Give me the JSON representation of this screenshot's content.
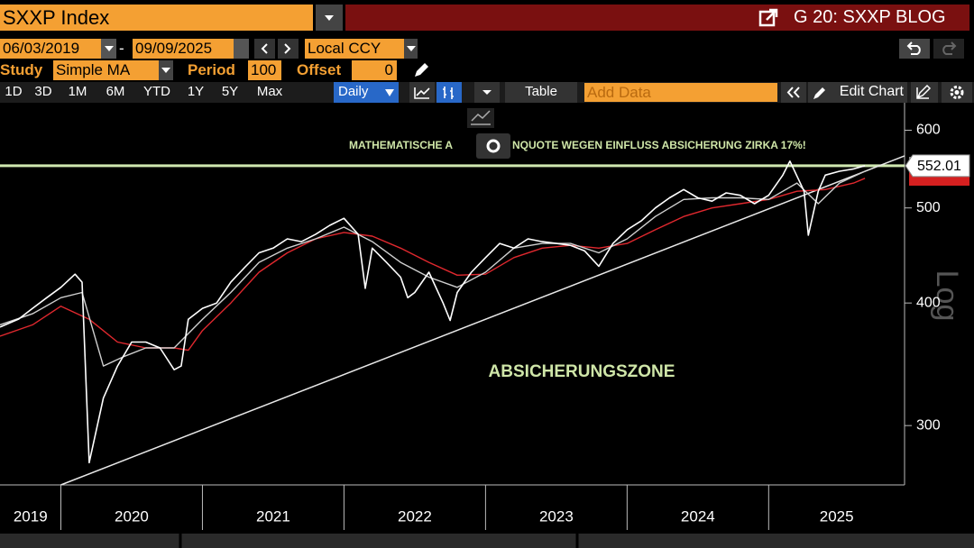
{
  "top": {
    "security": "SXXP Index",
    "window_title": "G 20: SXXP BLOG"
  },
  "controls": {
    "start_date": "06/03/2019",
    "date_separator": "-",
    "end_date": "09/09/2025",
    "currency": "Local CCY",
    "study_label": "Study",
    "study": "Simple MA",
    "period_label": "Period",
    "period": 100,
    "offset_label": "Offset",
    "offset": 0
  },
  "toolbar": {
    "ranges": [
      "1D",
      "3D",
      "1M",
      "6M",
      "YTD",
      "1Y",
      "5Y",
      "Max"
    ],
    "frequency": "Daily",
    "table": "Table",
    "add_data": "Add Data",
    "edit_chart": "Edit Chart"
  },
  "chart": {
    "type": "line",
    "log": true,
    "axis_label": "Log",
    "annotations": [
      "MATHEMATISCHE A",
      "NQUOTE WEGEN EINFLUSS ABSICHERUNG ZIRKA 17%!",
      "ABSICHERUNGSZONE"
    ],
    "xlim": [
      2019.57,
      2025.96
    ],
    "year_boundaries": [
      2020,
      2021,
      2022,
      2023,
      2024,
      2025
    ],
    "year_labels": [
      "2019",
      "2020",
      "2021",
      "2022",
      "2023",
      "2024",
      "2025"
    ],
    "ylim": [
      261,
      640
    ],
    "yticks": [
      300,
      400,
      500,
      600
    ],
    "last_price": 552.01,
    "level_color": "#cfe8b0",
    "trendline": {
      "x": [
        2020.0,
        2025.96
      ],
      "values": [
        261,
        565
      ],
      "color": "#e8e8e8"
    },
    "series": [
      {
        "color": "#ffffff",
        "x": [
          2019.57,
          2019.7,
          2019.8,
          2019.9,
          2020.0,
          2020.1,
          2020.15,
          2020.2,
          2020.3,
          2020.4,
          2020.5,
          2020.6,
          2020.7,
          2020.8,
          2020.85,
          2020.9,
          2021.0,
          2021.1,
          2021.2,
          2021.3,
          2021.4,
          2021.5,
          2021.6,
          2021.7,
          2021.8,
          2021.9,
          2022.0,
          2022.1,
          2022.15,
          2022.2,
          2022.3,
          2022.4,
          2022.45,
          2022.5,
          2022.6,
          2022.7,
          2022.75,
          2022.8,
          2022.9,
          2023.0,
          2023.1,
          2023.2,
          2023.3,
          2023.4,
          2023.5,
          2023.6,
          2023.7,
          2023.8,
          2023.9,
          2024.0,
          2024.1,
          2024.2,
          2024.3,
          2024.4,
          2024.5,
          2024.6,
          2024.7,
          2024.8,
          2024.9,
          2025.0,
          2025.1,
          2025.15,
          2025.25,
          2025.28,
          2025.35,
          2025.4,
          2025.5,
          2025.6,
          2025.68
        ],
        "values": [
          378,
          385,
          395,
          405,
          415,
          428,
          420,
          275,
          320,
          345,
          365,
          365,
          360,
          342,
          345,
          385,
          395,
          400,
          420,
          435,
          450,
          455,
          465,
          462,
          470,
          480,
          488,
          470,
          414,
          455,
          440,
          425,
          405,
          410,
          430,
          400,
          384,
          410,
          430,
          445,
          460,
          455,
          465,
          462,
          460,
          458,
          452,
          436,
          460,
          475,
          485,
          500,
          512,
          522,
          512,
          508,
          518,
          515,
          505,
          515,
          540,
          558,
          520,
          469,
          520,
          540,
          545,
          548,
          552.01
        ]
      },
      {
        "color": "#cfcfcf",
        "x": [
          2019.57,
          2019.8,
          2020.0,
          2020.15,
          2020.3,
          2020.45,
          2020.6,
          2020.8,
          2021.0,
          2021.2,
          2021.4,
          2021.6,
          2021.8,
          2022.0,
          2022.2,
          2022.4,
          2022.6,
          2022.8,
          2023.0,
          2023.2,
          2023.4,
          2023.6,
          2023.8,
          2024.0,
          2024.2,
          2024.4,
          2024.6,
          2024.8,
          2025.0,
          2025.2,
          2025.35,
          2025.5,
          2025.68
        ],
        "values": [
          380,
          390,
          405,
          410,
          345,
          353,
          360,
          360,
          385,
          410,
          440,
          455,
          465,
          478,
          462,
          440,
          425,
          415,
          430,
          455,
          460,
          460,
          450,
          465,
          490,
          510,
          512,
          512,
          510,
          530,
          505,
          530,
          545
        ]
      },
      {
        "color": "#e0282e",
        "x": [
          2019.57,
          2019.8,
          2020.0,
          2020.2,
          2020.4,
          2020.6,
          2020.8,
          2020.9,
          2021.0,
          2021.2,
          2021.4,
          2021.6,
          2021.8,
          2022.0,
          2022.2,
          2022.4,
          2022.6,
          2022.8,
          2023.0,
          2023.2,
          2023.4,
          2023.6,
          2023.8,
          2024.0,
          2024.2,
          2024.4,
          2024.6,
          2024.8,
          2025.0,
          2025.2,
          2025.4,
          2025.6,
          2025.68
        ],
        "values": [
          370,
          380,
          397,
          385,
          365,
          360,
          360,
          358,
          375,
          400,
          430,
          450,
          465,
          472,
          468,
          455,
          440,
          427,
          428,
          445,
          455,
          458,
          455,
          460,
          475,
          490,
          500,
          505,
          510,
          520,
          522,
          530,
          536
        ]
      }
    ]
  }
}
